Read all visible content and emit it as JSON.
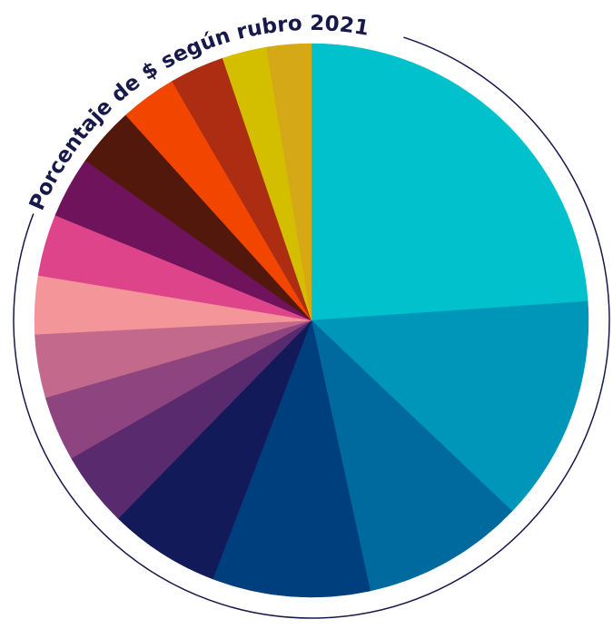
{
  "chart_data": {
    "type": "pie",
    "title": "Porcentaje de $ según rubro 2021",
    "series": [
      {
        "values": [
          23.9,
          13.2,
          9.5,
          9.2,
          6.5,
          4.4,
          3.8,
          3.7,
          3.4,
          3.6,
          3.6,
          3.5,
          3.3,
          3.2,
          2.6,
          2.6
        ],
        "colors": [
          "#00c1cc",
          "#0096b9",
          "#00699e",
          "#003f7e",
          "#121a5a",
          "#5a2a6e",
          "#8d447f",
          "#c3698b",
          "#f4959a",
          "#dd4489",
          "#6e135c",
          "#52180c",
          "#f24500",
          "#ad2d12",
          "#d4be00",
          "#d5a818"
        ]
      }
    ]
  }
}
